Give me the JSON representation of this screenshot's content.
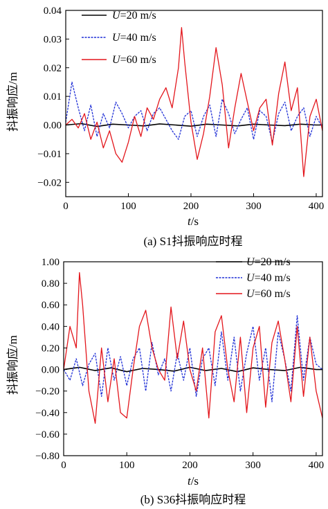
{
  "colors": {
    "u20": "#000000",
    "u40": "#1f2fd6",
    "u60": "#e3151b"
  },
  "chart_data": [
    {
      "type": "line",
      "caption": "(a) S1抖振响应时程",
      "xlabel": {
        "italic": "t",
        "rest": "/s"
      },
      "ylabel": "抖振响应/m",
      "xlim": [
        0,
        410
      ],
      "ylim": [
        -0.025,
        0.04
      ],
      "xticks": [
        0,
        100,
        200,
        300,
        400
      ],
      "xtick_labels": [
        "0",
        "100",
        "200",
        "300",
        "400"
      ],
      "yticks": [
        -0.02,
        -0.01,
        0,
        0.01,
        0.02,
        0.03,
        0.04
      ],
      "ytick_labels": [
        "−0.02",
        "−0.01",
        "0.00",
        "0.01",
        "0.02",
        "0.03",
        "0.04"
      ],
      "legend_position": "top-left",
      "grid": false,
      "series": [
        {
          "name_italic": "U",
          "name_rest": "=20 m/s",
          "color_key": "u20",
          "style": "solid",
          "x": [
            0,
            25,
            50,
            75,
            100,
            125,
            150,
            175,
            200,
            225,
            250,
            275,
            300,
            325,
            350,
            375,
            400,
            410
          ],
          "y": [
            0.0,
            0.0005,
            -0.0005,
            0.0003,
            0.0,
            -0.0003,
            0.0004,
            0.0,
            -0.0004,
            0.0003,
            0.0,
            -0.0003,
            0.0003,
            0.0,
            -0.0002,
            0.0003,
            0.0,
            0.0
          ]
        },
        {
          "name_italic": "U",
          "name_rest": "=40 m/s",
          "color_key": "u40",
          "style": "dashed",
          "x": [
            0,
            10,
            20,
            30,
            40,
            50,
            60,
            70,
            80,
            90,
            100,
            110,
            120,
            130,
            140,
            150,
            160,
            170,
            180,
            190,
            200,
            210,
            220,
            230,
            240,
            250,
            260,
            270,
            280,
            290,
            300,
            310,
            320,
            330,
            340,
            350,
            360,
            370,
            380,
            390,
            400,
            410
          ],
          "y": [
            0.001,
            0.015,
            0.006,
            -0.002,
            0.007,
            -0.004,
            0.004,
            -0.001,
            0.008,
            0.004,
            -0.001,
            0.003,
            0.005,
            -0.002,
            0.004,
            0.006,
            0.002,
            -0.002,
            -0.005,
            0.003,
            0.005,
            -0.004,
            0.003,
            0.007,
            -0.004,
            0.009,
            0.004,
            -0.003,
            0.002,
            0.006,
            -0.005,
            0.005,
            0.003,
            -0.006,
            0.004,
            0.008,
            -0.002,
            0.003,
            0.006,
            -0.004,
            0.003,
            -0.001
          ]
        },
        {
          "name_italic": "U",
          "name_rest": "=60 m/s",
          "color_key": "u60",
          "style": "solid",
          "x": [
            0,
            10,
            20,
            30,
            40,
            50,
            60,
            70,
            80,
            90,
            100,
            110,
            120,
            130,
            140,
            150,
            160,
            170,
            180,
            185,
            190,
            200,
            210,
            220,
            230,
            240,
            250,
            260,
            270,
            280,
            290,
            300,
            310,
            320,
            330,
            340,
            350,
            360,
            370,
            380,
            390,
            400,
            410
          ],
          "y": [
            0.0,
            0.002,
            -0.001,
            0.004,
            -0.005,
            0.001,
            -0.008,
            -0.002,
            -0.01,
            -0.013,
            -0.006,
            0.003,
            -0.004,
            0.006,
            0.002,
            0.009,
            0.013,
            0.006,
            0.02,
            0.034,
            0.022,
            0.001,
            -0.012,
            -0.003,
            0.01,
            0.027,
            0.014,
            -0.008,
            0.006,
            0.018,
            0.008,
            -0.002,
            0.006,
            0.009,
            -0.007,
            0.011,
            0.022,
            0.005,
            0.013,
            -0.018,
            0.003,
            0.009,
            -0.002
          ]
        }
      ]
    },
    {
      "type": "line",
      "caption": "(b) S36抖振响应时程",
      "xlabel": {
        "italic": "t",
        "rest": "/s"
      },
      "ylabel": "抖振响应/m",
      "xlim": [
        0,
        410
      ],
      "ylim": [
        -0.8,
        1.0
      ],
      "xticks": [
        0,
        100,
        200,
        300,
        400
      ],
      "xtick_labels": [
        "0",
        "100",
        "200",
        "300",
        "400"
      ],
      "yticks": [
        -0.8,
        -0.6,
        -0.4,
        -0.2,
        0,
        0.2,
        0.4,
        0.6,
        0.8,
        1.0
      ],
      "ytick_labels": [
        "−0.80",
        "−0.60",
        "−0.40",
        "−0.20",
        "0.00",
        "0.20",
        "0.40",
        "0.60",
        "0.80",
        "1.00"
      ],
      "legend_position": "top-right",
      "grid": false,
      "series": [
        {
          "name_italic": "U",
          "name_rest": "=20 m/s",
          "color_key": "u20",
          "style": "solid",
          "x": [
            0,
            25,
            50,
            75,
            100,
            125,
            150,
            175,
            200,
            225,
            250,
            275,
            300,
            325,
            350,
            375,
            400,
            410
          ],
          "y": [
            0.0,
            0.02,
            -0.01,
            0.015,
            -0.02,
            0.01,
            0.0,
            -0.015,
            0.02,
            -0.01,
            0.01,
            -0.02,
            0.015,
            0.0,
            -0.01,
            0.02,
            0.0,
            0.0
          ]
        },
        {
          "name_italic": "U",
          "name_rest": "=40 m/s",
          "color_key": "u40",
          "style": "dashed",
          "x": [
            0,
            10,
            20,
            30,
            40,
            50,
            60,
            70,
            80,
            90,
            100,
            110,
            120,
            130,
            140,
            150,
            160,
            170,
            180,
            190,
            200,
            210,
            220,
            230,
            240,
            250,
            260,
            270,
            280,
            290,
            300,
            310,
            320,
            330,
            340,
            350,
            360,
            370,
            380,
            390,
            400,
            410
          ],
          "y": [
            0.0,
            -0.1,
            0.1,
            -0.15,
            0.05,
            0.15,
            -0.25,
            0.2,
            -0.1,
            0.12,
            -0.15,
            0.1,
            0.2,
            -0.2,
            0.25,
            -0.05,
            0.1,
            -0.2,
            0.15,
            -0.1,
            0.2,
            -0.25,
            0.1,
            0.2,
            -0.15,
            0.35,
            -0.1,
            0.3,
            -0.2,
            0.15,
            0.4,
            -0.1,
            0.2,
            -0.3,
            0.35,
            0.1,
            -0.2,
            0.5,
            -0.1,
            0.3,
            0.05,
            0.0
          ]
        },
        {
          "name_italic": "U",
          "name_rest": "=60 m/s",
          "color_key": "u60",
          "style": "solid",
          "x": [
            0,
            10,
            20,
            25,
            30,
            40,
            50,
            60,
            70,
            80,
            90,
            100,
            110,
            120,
            130,
            140,
            150,
            160,
            170,
            180,
            190,
            200,
            210,
            220,
            230,
            240,
            250,
            260,
            270,
            280,
            290,
            300,
            310,
            320,
            330,
            340,
            350,
            360,
            370,
            380,
            390,
            400,
            410
          ],
          "y": [
            0.0,
            0.4,
            0.2,
            0.9,
            0.6,
            -0.2,
            -0.5,
            0.2,
            -0.3,
            0.1,
            -0.4,
            -0.45,
            0.0,
            0.4,
            0.55,
            0.2,
            0.0,
            -0.1,
            0.58,
            0.1,
            0.45,
            0.0,
            -0.2,
            0.2,
            -0.45,
            0.35,
            0.5,
            0.0,
            -0.3,
            0.3,
            -0.4,
            0.2,
            0.4,
            -0.35,
            0.25,
            0.45,
            0.1,
            -0.3,
            0.4,
            -0.25,
            0.3,
            -0.2,
            -0.45
          ]
        }
      ]
    }
  ]
}
